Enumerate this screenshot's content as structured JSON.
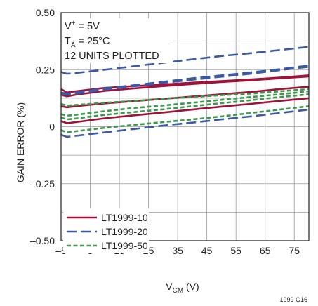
{
  "chart_data": {
    "type": "line",
    "xlabel": {
      "main": "V",
      "sub": "CM",
      "unit": " (V)"
    },
    "ylabel": "GAIN ERROR (%)",
    "xlim": [
      -5,
      80
    ],
    "ylim": [
      -0.5,
      0.5
    ],
    "x_ticks": [
      -5,
      5,
      15,
      25,
      35,
      45,
      55,
      65,
      75
    ],
    "y_ticks": [
      {
        "value": 0.5,
        "label": "0.50"
      },
      {
        "value": 0.25,
        "label": "0.25"
      },
      {
        "value": 0,
        "label": "0"
      },
      {
        "value": -0.25,
        "label": "–0.25"
      },
      {
        "value": -0.5,
        "label": "–0.50"
      }
    ],
    "grid": true,
    "annotation": {
      "line1": {
        "main": "V",
        "sup": "+",
        "rest": " = 5V"
      },
      "line2": {
        "main": "T",
        "sub": "A",
        "rest": " = 25°C"
      },
      "line3": "12 UNITS PLOTTED"
    },
    "legend": [
      {
        "label": "LT1999-10",
        "color": "#a0113a",
        "dash": "solid"
      },
      {
        "label": "LT1999-20",
        "color": "#3b5aa6",
        "dash": "long-dash"
      },
      {
        "label": "LT1999-50",
        "color": "#3a9a4a",
        "dash": "short-dash"
      }
    ],
    "series": [
      {
        "group": "LT1999-10",
        "x": [
          -5,
          -3,
          0,
          10,
          20,
          30,
          40,
          50,
          60,
          70,
          80
        ],
        "y": [
          0.165,
          0.15,
          0.155,
          0.17,
          0.178,
          0.185,
          0.193,
          0.2,
          0.207,
          0.215,
          0.225
        ]
      },
      {
        "group": "LT1999-10",
        "x": [
          -5,
          -3,
          0,
          10,
          20,
          30,
          40,
          50,
          60,
          70,
          80
        ],
        "y": [
          0.14,
          0.133,
          0.14,
          0.157,
          0.168,
          0.178,
          0.187,
          0.196,
          0.203,
          0.212,
          0.22
        ]
      },
      {
        "group": "LT1999-10",
        "x": [
          -5,
          -3,
          0,
          10,
          20,
          30,
          40,
          50,
          60,
          70,
          80
        ],
        "y": [
          0.09,
          0.085,
          0.09,
          0.102,
          0.112,
          0.122,
          0.132,
          0.142,
          0.152,
          0.165,
          0.175
        ]
      },
      {
        "group": "LT1999-10",
        "x": [
          -5,
          -3,
          0,
          10,
          20,
          30,
          40,
          50,
          60,
          70,
          80
        ],
        "y": [
          0.025,
          0.015,
          0.02,
          0.037,
          0.05,
          0.062,
          0.075,
          0.088,
          0.1,
          0.113,
          0.125
        ]
      },
      {
        "group": "LT1999-20",
        "x": [
          -5,
          -3,
          0,
          10,
          20,
          30,
          40,
          50,
          60,
          70,
          80
        ],
        "y": [
          0.24,
          0.232,
          0.235,
          0.25,
          0.265,
          0.28,
          0.295,
          0.31,
          0.322,
          0.336,
          0.35
        ]
      },
      {
        "group": "LT1999-20",
        "x": [
          -5,
          -3,
          0,
          10,
          20,
          30,
          40,
          50,
          60,
          70,
          80
        ],
        "y": [
          0.15,
          0.145,
          0.15,
          0.168,
          0.182,
          0.197,
          0.212,
          0.225,
          0.238,
          0.252,
          0.268
        ]
      },
      {
        "group": "LT1999-20",
        "x": [
          -5,
          -3,
          0,
          10,
          20,
          30,
          40,
          50,
          60,
          70,
          80
        ],
        "y": [
          0.145,
          0.14,
          0.145,
          0.163,
          0.178,
          0.192,
          0.206,
          0.219,
          0.232,
          0.248,
          0.262
        ]
      },
      {
        "group": "LT1999-20",
        "x": [
          -5,
          -3,
          0,
          10,
          20,
          30,
          40,
          50,
          60,
          70,
          80
        ],
        "y": [
          -0.035,
          -0.045,
          -0.04,
          -0.025,
          -0.01,
          0.005,
          0.018,
          0.032,
          0.045,
          0.06,
          0.075
        ]
      },
      {
        "group": "LT1999-50",
        "x": [
          -5,
          -3,
          0,
          10,
          20,
          30,
          40,
          50,
          60,
          70,
          80
        ],
        "y": [
          0.1,
          0.092,
          0.095,
          0.105,
          0.113,
          0.122,
          0.13,
          0.138,
          0.145,
          0.155,
          0.165
        ]
      },
      {
        "group": "LT1999-50",
        "x": [
          -5,
          -3,
          0,
          10,
          20,
          30,
          40,
          50,
          60,
          70,
          80
        ],
        "y": [
          0.055,
          0.048,
          0.052,
          0.068,
          0.082,
          0.093,
          0.105,
          0.118,
          0.13,
          0.142,
          0.155
        ]
      },
      {
        "group": "LT1999-50",
        "x": [
          -5,
          -3,
          0,
          10,
          20,
          30,
          40,
          50,
          60,
          70,
          80
        ],
        "y": [
          0.04,
          0.032,
          0.036,
          0.052,
          0.064,
          0.076,
          0.09,
          0.103,
          0.116,
          0.13,
          0.142
        ]
      },
      {
        "group": "LT1999-50",
        "x": [
          -5,
          -3,
          0,
          10,
          20,
          30,
          40,
          50,
          60,
          70,
          80
        ],
        "y": [
          -0.015,
          -0.025,
          -0.02,
          -0.005,
          0.008,
          0.02,
          0.032,
          0.045,
          0.06,
          0.075,
          0.09
        ]
      }
    ],
    "footer": "1999 G16"
  }
}
